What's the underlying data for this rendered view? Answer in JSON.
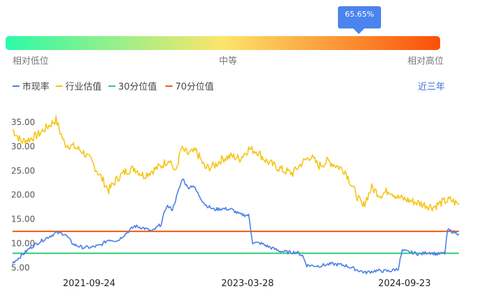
{
  "gauge": {
    "percentile_label": "65.65%",
    "percentile": 0.6565,
    "low_label": "相对低位",
    "mid_label": "中等",
    "high_label": "相对高位",
    "gradient": [
      "#2dfaa8",
      "#fde56b",
      "#fb4f08"
    ],
    "bubble_color": "#4b84ee"
  },
  "legend": [
    {
      "name": "市现率",
      "color": "#4b7fe8"
    },
    {
      "name": "行业估值",
      "color": "#f5c518"
    },
    {
      "name": "30分位值",
      "color": "#2ecc71"
    },
    {
      "name": "70分位值",
      "color": "#f05a14"
    }
  ],
  "range_button": "近三年",
  "chart_data": {
    "type": "line",
    "title": "",
    "xlabel": "",
    "ylabel": "",
    "x_ticks": [
      "2021-09-24",
      "2023-03-28",
      "2024-09-23"
    ],
    "y_ticks": [
      "5.00",
      "10.00",
      "15.00",
      "20.00",
      "25.00",
      "30.00",
      "35.00"
    ],
    "ylim": [
      3.5,
      37
    ],
    "x_range": [
      "2021-01-01",
      "2025-03-31"
    ],
    "series": [
      {
        "name": "市现率",
        "color": "#4b7fe8",
        "points": [
          [
            "2021-01-01",
            6.0
          ],
          [
            "2021-02-01",
            7.5
          ],
          [
            "2021-03-01",
            9.0
          ],
          [
            "2021-04-01",
            10.2
          ],
          [
            "2021-05-01",
            11.2
          ],
          [
            "2021-06-01",
            12.2
          ],
          [
            "2021-07-01",
            12.0
          ],
          [
            "2021-08-01",
            9.8
          ],
          [
            "2021-09-01",
            9.2
          ],
          [
            "2021-10-01",
            9.2
          ],
          [
            "2021-11-01",
            9.6
          ],
          [
            "2021-12-01",
            10.8
          ],
          [
            "2022-01-01",
            10.6
          ],
          [
            "2022-02-01",
            12.2
          ],
          [
            "2022-03-01",
            13.6
          ],
          [
            "2022-04-01",
            13.2
          ],
          [
            "2022-05-01",
            12.5
          ],
          [
            "2022-06-01",
            14.0
          ],
          [
            "2022-06-20",
            17.8
          ],
          [
            "2022-07-10",
            17.0
          ],
          [
            "2022-08-01",
            21.0
          ],
          [
            "2022-08-15",
            23.5
          ],
          [
            "2022-09-01",
            21.5
          ],
          [
            "2022-09-20",
            22.0
          ],
          [
            "2022-10-10",
            20.0
          ],
          [
            "2022-11-01",
            18.0
          ],
          [
            "2022-12-01",
            17.0
          ],
          [
            "2023-01-01",
            17.2
          ],
          [
            "2023-02-01",
            17.0
          ],
          [
            "2023-03-01",
            16.0
          ],
          [
            "2023-04-01",
            15.8
          ],
          [
            "2023-04-15",
            10.2
          ],
          [
            "2023-05-15",
            10.0
          ],
          [
            "2023-06-15",
            9.2
          ],
          [
            "2023-07-15",
            8.5
          ],
          [
            "2023-08-15",
            8.2
          ],
          [
            "2023-09-15",
            8.2
          ],
          [
            "2023-10-05",
            7.5
          ],
          [
            "2023-10-20",
            5.5
          ],
          [
            "2023-12-01",
            5.4
          ],
          [
            "2024-01-15",
            5.8
          ],
          [
            "2024-03-01",
            5.5
          ],
          [
            "2024-04-15",
            4.5
          ],
          [
            "2024-05-10",
            4.0
          ],
          [
            "2024-06-15",
            4.4
          ],
          [
            "2024-08-01",
            4.3
          ],
          [
            "2024-09-01",
            4.8
          ],
          [
            "2024-09-15",
            8.5
          ],
          [
            "2024-10-15",
            8.2
          ],
          [
            "2024-11-15",
            7.8
          ],
          [
            "2024-12-15",
            8.2
          ],
          [
            "2025-01-15",
            7.8
          ],
          [
            "2025-02-10",
            8.0
          ],
          [
            "2025-02-20",
            12.8
          ],
          [
            "2025-03-31",
            12.0
          ]
        ]
      },
      {
        "name": "行业估值",
        "color": "#f5c518",
        "points": [
          [
            "2021-01-01",
            33.5
          ],
          [
            "2021-02-01",
            31.0
          ],
          [
            "2021-03-01",
            31.5
          ],
          [
            "2021-04-01",
            32.5
          ],
          [
            "2021-05-01",
            34.0
          ],
          [
            "2021-06-01",
            35.5
          ],
          [
            "2021-07-01",
            30.5
          ],
          [
            "2021-08-01",
            30.0
          ],
          [
            "2021-09-01",
            29.0
          ],
          [
            "2021-10-01",
            27.0
          ],
          [
            "2021-11-01",
            24.0
          ],
          [
            "2021-12-01",
            21.0
          ],
          [
            "2022-01-01",
            23.5
          ],
          [
            "2022-02-01",
            25.0
          ],
          [
            "2022-03-01",
            25.5
          ],
          [
            "2022-04-01",
            24.0
          ],
          [
            "2022-05-01",
            25.0
          ],
          [
            "2022-06-01",
            26.0
          ],
          [
            "2022-07-01",
            27.5
          ],
          [
            "2022-07-20",
            24.5
          ],
          [
            "2022-08-10",
            29.5
          ],
          [
            "2022-09-01",
            28.5
          ],
          [
            "2022-10-01",
            29.0
          ],
          [
            "2022-11-01",
            25.5
          ],
          [
            "2022-12-01",
            26.0
          ],
          [
            "2023-01-01",
            27.5
          ],
          [
            "2023-02-01",
            28.0
          ],
          [
            "2023-03-01",
            27.5
          ],
          [
            "2023-04-01",
            29.5
          ],
          [
            "2023-05-01",
            29.0
          ],
          [
            "2023-06-01",
            27.0
          ],
          [
            "2023-07-01",
            26.0
          ],
          [
            "2023-08-01",
            25.0
          ],
          [
            "2023-09-01",
            24.5
          ],
          [
            "2023-10-01",
            26.5
          ],
          [
            "2023-11-01",
            28.0
          ],
          [
            "2023-12-01",
            26.0
          ],
          [
            "2024-01-01",
            27.0
          ],
          [
            "2024-02-01",
            26.0
          ],
          [
            "2024-03-01",
            25.0
          ],
          [
            "2024-04-01",
            21.0
          ],
          [
            "2024-05-01",
            17.5
          ],
          [
            "2024-06-01",
            21.5
          ],
          [
            "2024-07-01",
            20.0
          ],
          [
            "2024-08-01",
            21.0
          ],
          [
            "2024-09-01",
            19.5
          ],
          [
            "2024-10-01",
            19.0
          ],
          [
            "2024-11-01",
            18.5
          ],
          [
            "2024-12-01",
            18.0
          ],
          [
            "2025-01-01",
            17.5
          ],
          [
            "2025-02-01",
            18.5
          ],
          [
            "2025-03-01",
            19.0
          ],
          [
            "2025-03-31",
            18.0
          ]
        ]
      },
      {
        "name": "30分位值",
        "color": "#2ecc71",
        "constant": 8.0
      },
      {
        "name": "70分位值",
        "color": "#f05a14",
        "constant": 12.5
      }
    ]
  }
}
